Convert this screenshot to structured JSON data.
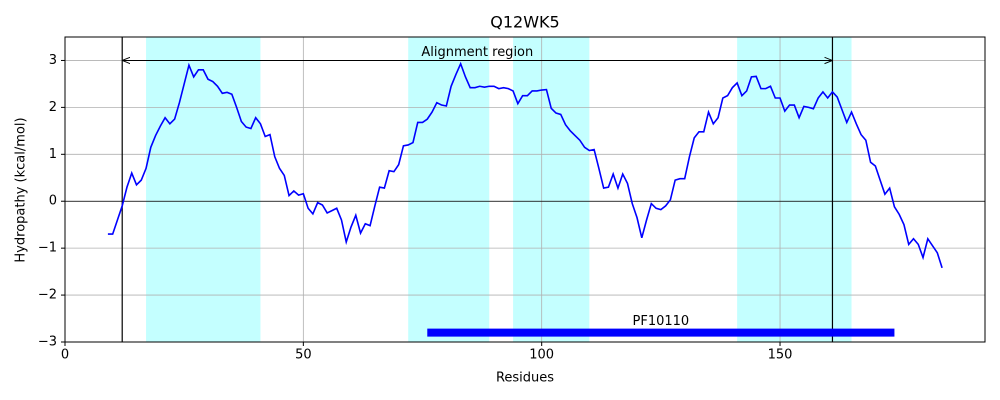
{
  "chart_data": {
    "type": "line",
    "title": "Q12WK5",
    "xlabel": "Residues",
    "ylabel": "Hydropathy (kcal/mol)",
    "xlim": [
      0,
      193
    ],
    "ylim": [
      -3,
      3.5
    ],
    "xticks": [
      0,
      50,
      100,
      150
    ],
    "yticks": [
      {
        "value": -3,
        "label": "−3"
      },
      {
        "value": -2,
        "label": "−2"
      },
      {
        "value": -1,
        "label": "−1"
      },
      0,
      1,
      2,
      3
    ],
    "grid": true,
    "hlines": [
      0
    ],
    "regions": [
      {
        "start": 17,
        "end": 41
      },
      {
        "start": 72,
        "end": 89
      },
      {
        "start": 94,
        "end": 110
      },
      {
        "start": 141,
        "end": 165
      }
    ],
    "region_color": "#c4ffff",
    "vlines": [
      12,
      161
    ],
    "arrow": {
      "start": 12,
      "end": 161,
      "y": 3,
      "label": "Alignment region"
    },
    "feature": {
      "start": 76,
      "end": 174,
      "y": -2.8,
      "label": "PF10110",
      "color": "#0000ff"
    },
    "x": [
      9,
      10,
      11,
      12,
      13,
      14,
      15,
      16,
      17,
      18,
      19,
      20,
      21,
      22,
      23,
      24,
      25,
      26,
      27,
      28,
      29,
      30,
      31,
      32,
      33,
      34,
      35,
      36,
      37,
      38,
      39,
      40,
      41,
      42,
      43,
      44,
      45,
      46,
      47,
      48,
      49,
      50,
      51,
      52,
      53,
      54,
      55,
      56,
      57,
      58,
      59,
      60,
      61,
      62,
      63,
      64,
      65,
      66,
      67,
      68,
      69,
      70,
      71,
      72,
      73,
      74,
      75,
      76,
      77,
      78,
      79,
      80,
      81,
      82,
      83,
      84,
      85,
      86,
      87,
      88,
      89,
      90,
      91,
      92,
      93,
      94,
      95,
      96,
      97,
      98,
      99,
      100,
      101,
      102,
      103,
      104,
      105,
      106,
      107,
      108,
      109,
      110,
      111,
      112,
      113,
      114,
      115,
      116,
      117,
      118,
      119,
      120,
      121,
      122,
      123,
      124,
      125,
      126,
      127,
      128,
      129,
      130,
      131,
      132,
      133,
      134,
      135,
      136,
      137,
      138,
      139,
      140,
      141,
      142,
      143,
      144,
      145,
      146,
      147,
      148,
      149,
      150,
      151,
      152,
      153,
      154,
      155,
      156,
      157,
      158,
      159,
      160,
      161,
      162,
      163,
      164,
      165,
      166,
      167,
      168,
      169,
      170,
      171,
      172,
      173,
      174,
      175,
      176,
      177,
      178,
      179,
      180,
      181,
      182,
      183,
      184
    ],
    "series": [
      {
        "color": "#0000ff",
        "values": [
          -0.7,
          -0.7,
          -0.4,
          -0.1,
          0.3,
          0.6,
          0.35,
          0.45,
          0.7,
          1.15,
          1.4,
          1.6,
          1.78,
          1.65,
          1.75,
          2.1,
          2.5,
          2.9,
          2.65,
          2.8,
          2.8,
          2.6,
          2.55,
          2.45,
          2.3,
          2.32,
          2.28,
          2.0,
          1.7,
          1.58,
          1.55,
          1.78,
          1.65,
          1.38,
          1.42,
          0.95,
          0.7,
          0.55,
          0.12,
          0.22,
          0.13,
          0.16,
          -0.15,
          -0.27,
          -0.03,
          -0.08,
          -0.25,
          -0.2,
          -0.15,
          -0.4,
          -0.87,
          -0.55,
          -0.3,
          -0.68,
          -0.48,
          -0.52,
          -0.1,
          0.3,
          0.28,
          0.65,
          0.63,
          0.78,
          1.18,
          1.2,
          1.25,
          1.68,
          1.68,
          1.75,
          1.9,
          2.1,
          2.05,
          2.03,
          2.45,
          2.7,
          2.93,
          2.65,
          2.42,
          2.42,
          2.45,
          2.43,
          2.45,
          2.45,
          2.4,
          2.42,
          2.4,
          2.35,
          2.08,
          2.25,
          2.25,
          2.35,
          2.35,
          2.37,
          2.38,
          1.98,
          1.88,
          1.85,
          1.63,
          1.5,
          1.4,
          1.3,
          1.15,
          1.08,
          1.1,
          0.7,
          0.28,
          0.3,
          0.58,
          0.28,
          0.58,
          0.38,
          -0.05,
          -0.35,
          -0.78,
          -0.4,
          -0.05,
          -0.15,
          -0.18,
          -0.1,
          0.03,
          0.45,
          0.48,
          0.48,
          0.95,
          1.35,
          1.48,
          1.48,
          1.9,
          1.65,
          1.78,
          2.2,
          2.25,
          2.42,
          2.52,
          2.25,
          2.35,
          2.65,
          2.66,
          2.4,
          2.4,
          2.45,
          2.2,
          2.2,
          1.92,
          2.05,
          2.05,
          1.78,
          2.02,
          2.0,
          1.97,
          2.2,
          2.33,
          2.2,
          2.33,
          2.22,
          1.95,
          1.68,
          1.9,
          1.65,
          1.42,
          1.3,
          0.83,
          0.75,
          0.45,
          0.15,
          0.28,
          -0.12,
          -0.28,
          -0.5,
          -0.92,
          -0.8,
          -0.92,
          -1.2,
          -0.8,
          -0.95,
          -1.1,
          -1.42
        ]
      }
    ]
  }
}
